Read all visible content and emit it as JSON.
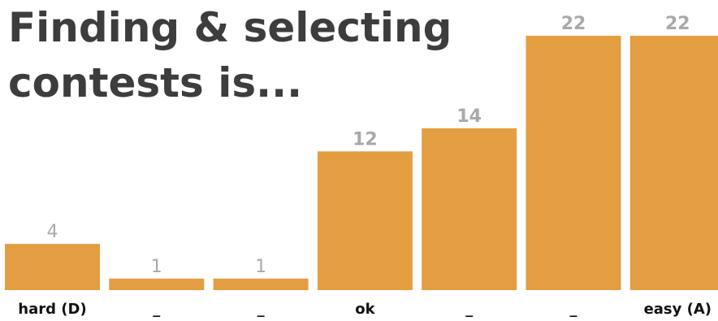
{
  "chart_data": {
    "type": "bar",
    "title_lines": [
      "Finding & selecting",
      "contests is..."
    ],
    "categories": [
      "hard (D)",
      "_",
      "_",
      "ok",
      "_",
      "_",
      "easy (A)"
    ],
    "values": [
      4,
      1,
      1,
      12,
      14,
      22,
      22
    ],
    "value_labels": [
      "4",
      "1",
      "1",
      "12",
      "14",
      "22",
      "22"
    ],
    "xlabel": "",
    "ylabel": "",
    "ylim": [
      0,
      22
    ],
    "grid": false,
    "legend": "none"
  },
  "colors": {
    "bar": "#e39e41",
    "title": "#3d3d3d",
    "value_label": "#a9a9a9",
    "category_label": "#111111"
  }
}
